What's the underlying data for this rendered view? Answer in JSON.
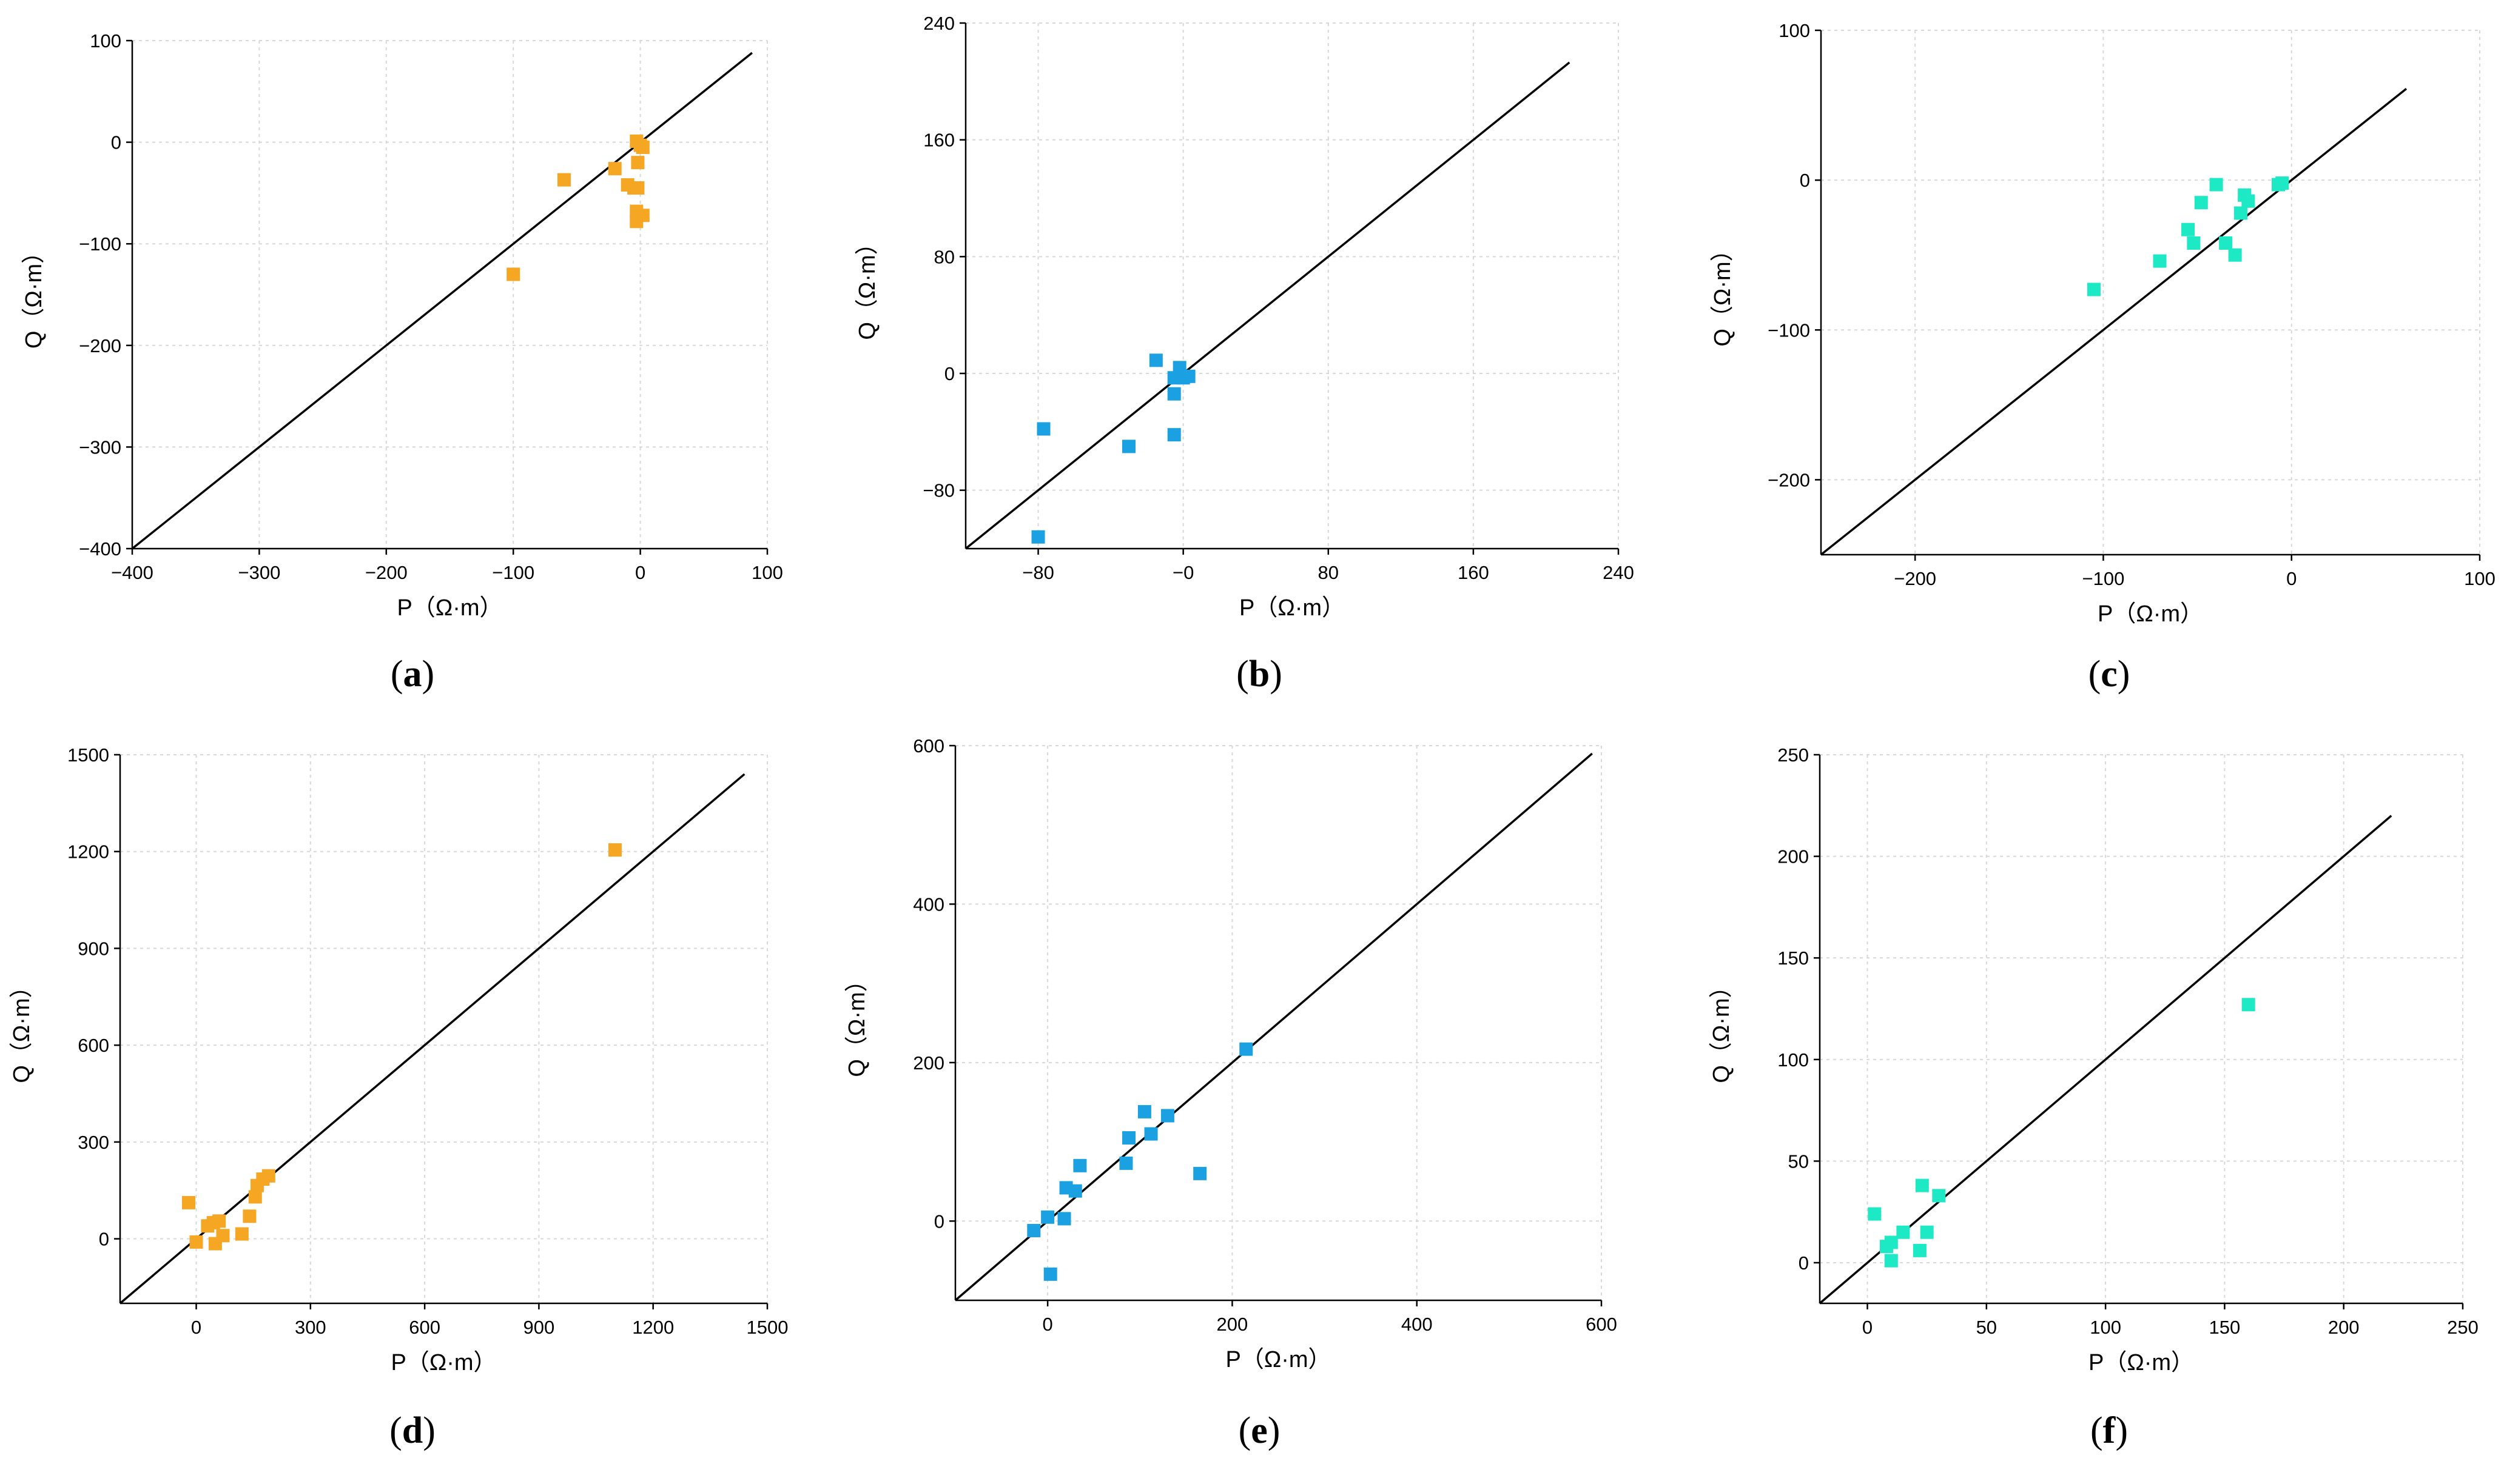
{
  "figure": {
    "colors": {
      "orange": "#F5A623",
      "blue": "#1BA1E2",
      "cyan": "#1DE9C5",
      "line": "#000000",
      "grid": "#d8d8d8"
    },
    "icons": {
      "marker": "square-marker"
    }
  },
  "chart_data": [
    {
      "panel": "a",
      "caption": "(a)",
      "type": "scatter",
      "xlabel": "P（Ω·m）",
      "ylabel": "Q（Ω·m）",
      "xlim": [
        -400,
        100
      ],
      "ylim": [
        -400,
        100
      ],
      "xticks": [
        -400,
        -300,
        -200,
        -100,
        0,
        100
      ],
      "yticks": [
        -400,
        -300,
        -200,
        -100,
        0,
        100
      ],
      "xtick_labels": [
        "−400",
        "−300",
        "−200",
        "−100",
        "0",
        "100"
      ],
      "ytick_labels": [
        "−400",
        "−300",
        "−200",
        "−100",
        "0",
        "100"
      ],
      "line": [
        [
          -400,
          -400
        ],
        [
          88,
          88
        ]
      ],
      "color": "orange",
      "points": [
        [
          -100,
          -130
        ],
        [
          -60,
          -37
        ],
        [
          -20,
          -26
        ],
        [
          -10,
          -42
        ],
        [
          -5,
          -45
        ],
        [
          -3,
          1
        ],
        [
          -2,
          -20
        ],
        [
          -2,
          -45
        ],
        [
          -3,
          -68
        ],
        [
          -3,
          -78
        ],
        [
          0,
          -3
        ],
        [
          2,
          -5
        ],
        [
          2,
          -72
        ]
      ]
    },
    {
      "panel": "b",
      "caption": "(b)",
      "type": "scatter",
      "xlabel": "P（Ω·m）",
      "ylabel": "Q（Ω·m）",
      "xlim": [
        -120,
        240
      ],
      "ylim": [
        -120,
        240
      ],
      "xticks": [
        -80,
        0,
        80,
        160,
        240
      ],
      "yticks": [
        -80,
        0,
        80,
        160,
        240
      ],
      "xtick_labels": [
        "−80",
        "−0",
        "80",
        "160",
        "240"
      ],
      "ytick_labels": [
        "−80",
        "0",
        "80",
        "160",
        "240"
      ],
      "line": [
        [
          -120,
          -120
        ],
        [
          213,
          213
        ]
      ],
      "color": "blue",
      "points": [
        [
          -80,
          -112
        ],
        [
          -77,
          -38
        ],
        [
          -30,
          -50
        ],
        [
          -15,
          9
        ],
        [
          -5,
          -3
        ],
        [
          -5,
          -42
        ],
        [
          -5,
          -14
        ],
        [
          -2,
          4
        ],
        [
          0,
          -3
        ],
        [
          3,
          -2
        ]
      ]
    },
    {
      "panel": "c",
      "caption": "(c)",
      "type": "scatter",
      "xlabel": "P（Ω·m）",
      "ylabel": "Q（Ω·m）",
      "xlim": [
        -250,
        100
      ],
      "ylim": [
        -250,
        100
      ],
      "xticks": [
        -200,
        -100,
        0,
        100
      ],
      "yticks": [
        -200,
        -100,
        0,
        100
      ],
      "xtick_labels": [
        "−200",
        "−100",
        "0",
        "100"
      ],
      "ytick_labels": [
        "−200",
        "−100",
        "0",
        "100"
      ],
      "line": [
        [
          -250,
          -250
        ],
        [
          61,
          61
        ]
      ],
      "color": "cyan",
      "points": [
        [
          -105,
          -73
        ],
        [
          -70,
          -54
        ],
        [
          -55,
          -33
        ],
        [
          -52,
          -42
        ],
        [
          -48,
          -15
        ],
        [
          -40,
          -3
        ],
        [
          -35,
          -42
        ],
        [
          -30,
          -50
        ],
        [
          -27,
          -22
        ],
        [
          -25,
          -10
        ],
        [
          -23,
          -14
        ],
        [
          -7,
          -3
        ],
        [
          -5,
          -2
        ]
      ]
    },
    {
      "panel": "d",
      "caption": "(d)",
      "type": "scatter",
      "xlabel": "P（Ω·m）",
      "ylabel": "Q（Ω·m）",
      "xlim": [
        -200,
        1500
      ],
      "ylim": [
        -200,
        1500
      ],
      "xticks": [
        0,
        300,
        600,
        900,
        1200,
        1500
      ],
      "yticks": [
        0,
        300,
        600,
        900,
        1200,
        1500
      ],
      "xtick_labels": [
        "0",
        "300",
        "600",
        "900",
        "1200",
        "1500"
      ],
      "ytick_labels": [
        "0",
        "300",
        "600",
        "900",
        "1200",
        "1500"
      ],
      "line": [
        [
          -200,
          -200
        ],
        [
          1440,
          1440
        ]
      ],
      "color": "orange",
      "points": [
        [
          -20,
          112
        ],
        [
          0,
          -10
        ],
        [
          30,
          40
        ],
        [
          45,
          50
        ],
        [
          50,
          -15
        ],
        [
          60,
          55
        ],
        [
          70,
          10
        ],
        [
          120,
          15
        ],
        [
          140,
          70
        ],
        [
          155,
          130
        ],
        [
          160,
          165
        ],
        [
          175,
          185
        ],
        [
          190,
          195
        ],
        [
          1100,
          1205
        ]
      ]
    },
    {
      "panel": "e",
      "caption": "(e)",
      "type": "scatter",
      "xlabel": "P（Ω·m）",
      "ylabel": "Q（Ω·m）",
      "xlim": [
        -100,
        600
      ],
      "ylim": [
        -100,
        600
      ],
      "xticks": [
        0,
        200,
        400,
        600
      ],
      "yticks": [
        0,
        200,
        400,
        600
      ],
      "xtick_labels": [
        "0",
        "200",
        "400",
        "600"
      ],
      "ytick_labels": [
        "0",
        "200",
        "400",
        "600"
      ],
      "line": [
        [
          -100,
          -100
        ],
        [
          590,
          590
        ]
      ],
      "color": "blue",
      "points": [
        [
          -15,
          -12
        ],
        [
          0,
          5
        ],
        [
          3,
          -67
        ],
        [
          18,
          3
        ],
        [
          20,
          42
        ],
        [
          30,
          38
        ],
        [
          35,
          70
        ],
        [
          85,
          73
        ],
        [
          88,
          105
        ],
        [
          105,
          138
        ],
        [
          112,
          110
        ],
        [
          130,
          133
        ],
        [
          165,
          60
        ],
        [
          215,
          217
        ]
      ]
    },
    {
      "panel": "f",
      "caption": "(f)",
      "type": "scatter",
      "xlabel": "P（Ω·m）",
      "ylabel": "Q（Ω·m）",
      "xlim": [
        -20,
        250
      ],
      "ylim": [
        -20,
        250
      ],
      "xticks": [
        0,
        50,
        100,
        150,
        200,
        250
      ],
      "yticks": [
        0,
        50,
        100,
        150,
        200,
        250
      ],
      "xtick_labels": [
        "0",
        "50",
        "100",
        "150",
        "200",
        "250"
      ],
      "ytick_labels": [
        "0",
        "50",
        "100",
        "150",
        "200",
        "250"
      ],
      "line": [
        [
          -20,
          -20
        ],
        [
          220,
          220
        ]
      ],
      "color": "cyan",
      "points": [
        [
          3,
          24
        ],
        [
          8,
          8
        ],
        [
          10,
          1
        ],
        [
          10,
          10
        ],
        [
          15,
          15
        ],
        [
          22,
          6
        ],
        [
          23,
          38
        ],
        [
          25,
          15
        ],
        [
          30,
          33
        ],
        [
          160,
          127
        ]
      ]
    }
  ]
}
